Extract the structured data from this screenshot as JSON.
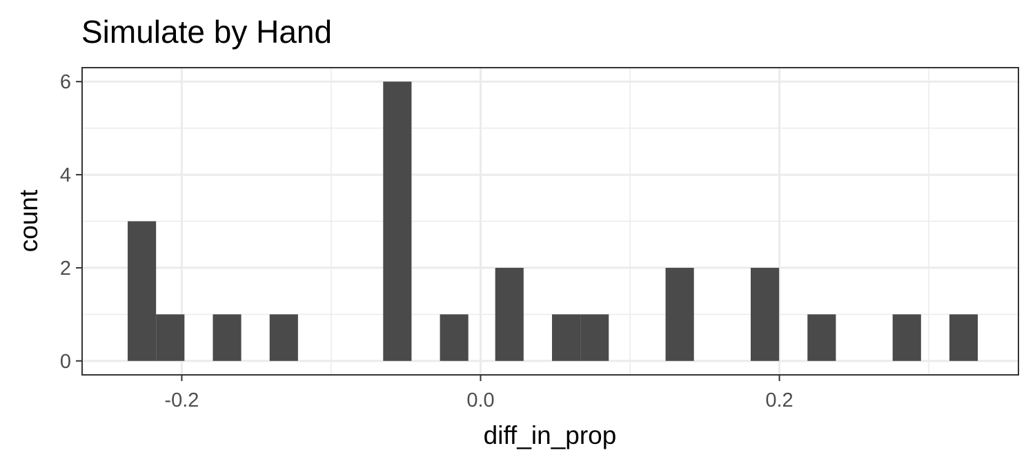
{
  "chart_data": {
    "type": "bar",
    "title": "Simulate by Hand",
    "xlabel": "diff_in_prop",
    "ylabel": "count",
    "xlim": [
      -0.2667,
      0.36
    ],
    "ylim": [
      -0.3,
      6.3
    ],
    "x_ticks": [
      -0.2,
      0.0,
      0.2
    ],
    "x_tick_labels": [
      "-0.2",
      "0.0",
      "0.2"
    ],
    "y_ticks": [
      0,
      2,
      4,
      6
    ],
    "y_tick_labels": [
      "0",
      "2",
      "4",
      "6"
    ],
    "grid": true,
    "bin_width": 0.019,
    "bins": [
      {
        "x": -0.2267,
        "count": 3
      },
      {
        "x": -0.2077,
        "count": 1
      },
      {
        "x": -0.1697,
        "count": 1
      },
      {
        "x": -0.1317,
        "count": 1
      },
      {
        "x": -0.0557,
        "count": 6
      },
      {
        "x": -0.0177,
        "count": 1
      },
      {
        "x": 0.0193,
        "count": 2
      },
      {
        "x": 0.0573,
        "count": 1
      },
      {
        "x": 0.0763,
        "count": 1
      },
      {
        "x": 0.1333,
        "count": 2
      },
      {
        "x": 0.1903,
        "count": 2
      },
      {
        "x": 0.2283,
        "count": 1
      },
      {
        "x": 0.2853,
        "count": 1
      },
      {
        "x": 0.3233,
        "count": 1
      }
    ]
  }
}
